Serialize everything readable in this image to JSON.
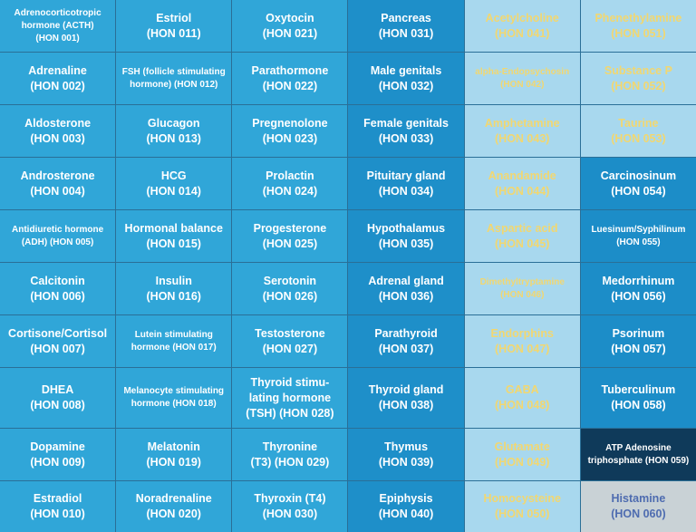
{
  "colors": {
    "column_1_3": "#30a6d8",
    "column_4": "#1e8fc9",
    "column_5": "#a8d8ee",
    "column_5_text": "#f2d770",
    "column_6": "#1c8dc8",
    "cell_059": "#0f3a5a",
    "cell_060": "#c9d2d6",
    "cell_060_text": "#4e6cb0"
  },
  "columns": [
    [
      {
        "l1": "Adrenocorticotropic",
        "l2": "hormone (ACTH)",
        "l3": "(HON 001)",
        "size": "small"
      },
      {
        "l1": "Adrenaline",
        "l2": "(HON 002)",
        "size": "big"
      },
      {
        "l1": "Aldosterone",
        "l2": "(HON 003)",
        "size": "big"
      },
      {
        "l1": "Androsterone",
        "l2": "(HON 004)",
        "size": "big"
      },
      {
        "l1": "Antidiuretic hormone",
        "l2": "(ADH) (HON 005)",
        "size": "small"
      },
      {
        "l1": "Calcitonin",
        "l2": "(HON 006)",
        "size": "big"
      },
      {
        "l1": "Cortisone/Cortisol",
        "l2": "(HON 007)",
        "size": "big"
      },
      {
        "l1": "DHEA",
        "l2": "(HON 008)",
        "size": "big"
      },
      {
        "l1": "Dopamine",
        "l2": "(HON 009)",
        "size": "big"
      },
      {
        "l1": "Estradiol",
        "l2": "(HON 010)",
        "size": "big"
      }
    ],
    [
      {
        "l1": "Estriol",
        "l2": "(HON 011)",
        "size": "big"
      },
      {
        "l1": "FSH (follicle stimulating",
        "l2": "hormone) (HON 012)",
        "size": "small"
      },
      {
        "l1": "Glucagon",
        "l2": "(HON 013)",
        "size": "big"
      },
      {
        "l1": "HCG",
        "l2": "(HON 014)",
        "size": "big"
      },
      {
        "l1": "Hormonal balance",
        "l2": "(HON 015)",
        "size": "big"
      },
      {
        "l1": "Insulin",
        "l2": "(HON 016)",
        "size": "big"
      },
      {
        "l1": "Lutein stimulating",
        "l2": "hormone (HON 017)",
        "size": "small"
      },
      {
        "l1": "Melanocyte stimulating",
        "l2": "hormone (HON 018)",
        "size": "small"
      },
      {
        "l1": "Melatonin",
        "l2": "(HON 019)",
        "size": "big"
      },
      {
        "l1": "Noradrenaline",
        "l2": "(HON 020)",
        "size": "big"
      }
    ],
    [
      {
        "l1": "Oxytocin",
        "l2": "(HON 021)",
        "size": "big"
      },
      {
        "l1": "Parathormone",
        "l2": "(HON 022)",
        "size": "big"
      },
      {
        "l1": "Pregnenolone",
        "l2": "(HON 023)",
        "size": "big"
      },
      {
        "l1": "Prolactin",
        "l2": "(HON 024)",
        "size": "big"
      },
      {
        "l1": "Progesterone",
        "l2": "(HON 025)",
        "size": "big"
      },
      {
        "l1": "Serotonin",
        "l2": "(HON 026)",
        "size": "big"
      },
      {
        "l1": "Testosterone",
        "l2": "(HON 027)",
        "size": "big"
      },
      {
        "l1": "Thyroid stimu-",
        "l2": "lating hormone",
        "l3": "(TSH) (HON 028)",
        "size": "big"
      },
      {
        "l1": "Thyronine",
        "l2": "(T3) (HON 029)",
        "size": "big"
      },
      {
        "l1": "Thyroxin (T4)",
        "l2": "(HON 030)",
        "size": "big"
      }
    ],
    [
      {
        "l1": "Pancreas",
        "l2": "(HON 031)",
        "size": "big"
      },
      {
        "l1": "Male genitals",
        "l2": "(HON 032)",
        "size": "big"
      },
      {
        "l1": "Female genitals",
        "l2": "(HON 033)",
        "size": "big"
      },
      {
        "l1": "Pituitary gland",
        "l2": "(HON 034)",
        "size": "big"
      },
      {
        "l1": "Hypothalamus",
        "l2": "(HON 035)",
        "size": "big"
      },
      {
        "l1": "Adrenal gland",
        "l2": "(HON 036)",
        "size": "big"
      },
      {
        "l1": "Parathyroid",
        "l2": "(HON 037)",
        "size": "big"
      },
      {
        "l1": "Thyroid gland",
        "l2": "(HON 038)",
        "size": "big"
      },
      {
        "l1": "Thymus",
        "l2": "(HON 039)",
        "size": "big"
      },
      {
        "l1": "Epiphysis",
        "l2": "(HON 040)",
        "size": "big"
      }
    ],
    [
      {
        "l1": "Acetylcholine",
        "l2": "(HON 041)",
        "size": "big"
      },
      {
        "l1": "alpha-Endopsychosin",
        "l2": "(HON 042)",
        "size": "small"
      },
      {
        "l1": "Amphetamine",
        "l2": "(HON 043)",
        "size": "big"
      },
      {
        "l1": "Anandamide",
        "l2": "(HON 044)",
        "size": "big"
      },
      {
        "l1": "Aspartic acid",
        "l2": "(HON 045)",
        "size": "big"
      },
      {
        "l1": "Dimethyltryptamine",
        "l2": "(HON 046)",
        "size": "small"
      },
      {
        "l1": "Endorphins",
        "l2": "(HON 047)",
        "size": "big"
      },
      {
        "l1": "GABA",
        "l2": "(HON 048)",
        "size": "big"
      },
      {
        "l1": "Glutamate",
        "l2": "(HON 049)",
        "size": "big"
      },
      {
        "l1": "Homocysteine",
        "l2": "(HON 050)",
        "size": "big"
      }
    ],
    [
      {
        "l1": "Phenethylamine",
        "l2": "(HON 051)",
        "size": "big"
      },
      {
        "l1": "Substance P",
        "l2": "(HON 052)",
        "size": "big"
      },
      {
        "l1": "Taurine",
        "l2": "(HON 053)",
        "size": "big"
      },
      {
        "l1": "Carcinosinum",
        "l2": "(HON 054)",
        "size": "big"
      },
      {
        "l1": "Luesinum/Syphilinum",
        "l2": "(HON 055)",
        "size": "small"
      },
      {
        "l1": "Medorrhinum",
        "l2": "(HON 056)",
        "size": "big"
      },
      {
        "l1": "Psorinum",
        "l2": "(HON 057)",
        "size": "big"
      },
      {
        "l1": "Tuberculinum",
        "l2": "(HON 058)",
        "size": "big"
      },
      {
        "l1": "ATP Adenosine",
        "l2": "triphosphate (HON 059)",
        "size": "small"
      },
      {
        "l1": "Histamine",
        "l2": "(HON 060)",
        "size": "big"
      }
    ]
  ]
}
